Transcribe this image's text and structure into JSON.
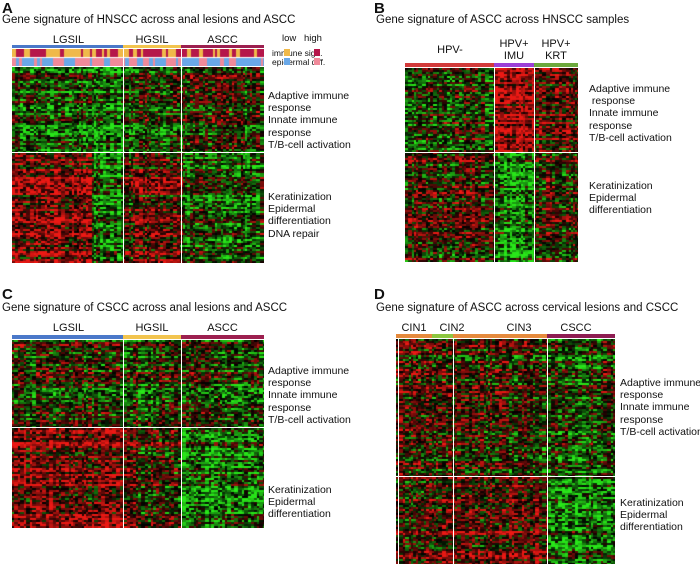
{
  "colors": {
    "lgsil": "#4a78c9",
    "hgsil": "#f2c44e",
    "ascc": "#9c1f4f",
    "hpv_neg": "#d23a3a",
    "hpv_imu": "#9b3fd6",
    "hpv_krt": "#6ca83c",
    "cin1": "#e58a3d",
    "cin2": "#8cc63f",
    "cin3": "#e58a3d",
    "cscc": "#8e1d52",
    "heat_red": "#e81c1c",
    "heat_green": "#26e61a",
    "legend_low_immune": "#f0b94a",
    "legend_high_immune": "#b5174a",
    "legend_low_epi": "#6aa8e8",
    "legend_high_epi": "#f08a9a"
  },
  "panelA": {
    "letter": "A",
    "title": "Gene signature of HNSCC across anal lesions and ASCC",
    "groups": [
      "LGSIL",
      "HGSIL",
      "ASCC"
    ],
    "legend": {
      "low": "low",
      "high": "high",
      "immune": "immune sign.",
      "epidermal": "epidermal diff."
    },
    "annot_top": "Adaptive immune\nresponse\nInnate immune\nresponse\nT/B-cell activation",
    "annot_bottom": "Keratinization\nEpidermal\ndifferentiation\nDNA repair"
  },
  "panelB": {
    "letter": "B",
    "title": "Gene signature of ASCC across HNSCC samples",
    "groups": [
      "HPV-",
      "HPV+\nIMU",
      "HPV+\nKRT"
    ],
    "annot_top": "Adaptive immune\n response\nInnate immune\nresponse\nT/B-cell activation",
    "annot_bottom": "Keratinization\nEpidermal\ndifferentiation"
  },
  "panelC": {
    "letter": "C",
    "title": "Gene signature of CSCC across anal lesions and ASCC",
    "groups": [
      "LGSIL",
      "HGSIL",
      "ASCC"
    ],
    "annot_top": "Adaptive immune\nresponse\nInnate immune\nresponse\nT/B-cell activation",
    "annot_bottom": "Keratinization\nEpidermal\ndifferentiation"
  },
  "panelD": {
    "letter": "D",
    "title": "Gene signature of ASCC across cervical lesions and CSCC",
    "groups": [
      "CIN1",
      "CIN2",
      "CIN3",
      "CSCC"
    ],
    "annot_top": "Adaptive immune\nresponse\nInnate immune\nresponse\nT/B-cell activation",
    "annot_bottom": "Keratinization\nEpidermal\ndifferentiation"
  }
}
